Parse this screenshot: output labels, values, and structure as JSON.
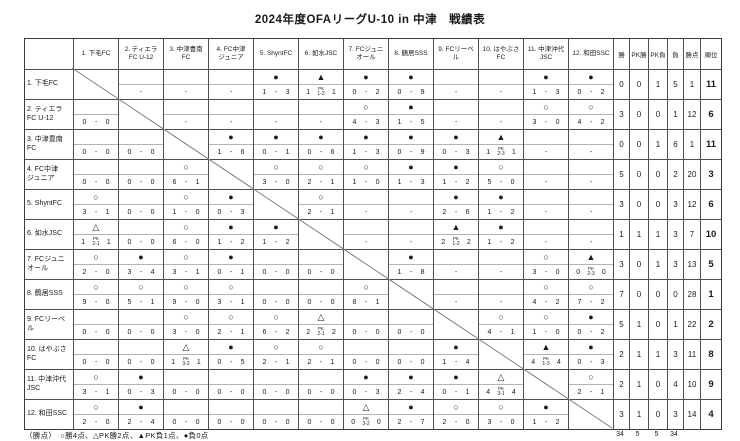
{
  "title": "2024年度OFAリーグU-10 in 中津　戦績表",
  "legend": "（勝点）　○勝4点、△PK勝2点、▲PK負1点、●負0点",
  "colors": {
    "background": "#ffffff",
    "grid_border": "#4f4f4f",
    "split_line": "#b3b3b3",
    "text": "#1a1a1a"
  },
  "stat_headers": [
    "勝",
    "PK勝",
    "PK負",
    "負",
    "勝点",
    "順位"
  ],
  "stat_totals": [
    "34",
    "5",
    "5",
    "34"
  ],
  "teams": [
    {
      "header": [
        "1. 下毛FC"
      ],
      "label": [
        "1. 下毛FC"
      ]
    },
    {
      "header": [
        "2. ティエラ",
        "FC U-12"
      ],
      "label": [
        "2. ティエラ",
        "FC U-12"
      ]
    },
    {
      "header": [
        "3. 中津豊南",
        "FC"
      ],
      "label": [
        "3. 中津豊南",
        "FC"
      ]
    },
    {
      "header": [
        "4. FC中津",
        "ジュニア"
      ],
      "label": [
        "4. FC中津",
        "ジュニア"
      ]
    },
    {
      "header": [
        "5. ShyntFC"
      ],
      "label": [
        "5. ShyntFC"
      ]
    },
    {
      "header": [
        "6. 如水JSC"
      ],
      "label": [
        "6. 如水JSC"
      ]
    },
    {
      "header": [
        "7. FCジュニ",
        "オール"
      ],
      "label": [
        "7. FCジュニ",
        "オール"
      ]
    },
    {
      "header": [
        "8. 鶴居SSS"
      ],
      "label": [
        "8. 鶴居SSS"
      ]
    },
    {
      "header": [
        "9. FCリーベ",
        "ル"
      ],
      "label": [
        "9. FCリーベ",
        "ル"
      ]
    },
    {
      "header": [
        "10. はやぶさ",
        "FC"
      ],
      "label": [
        "10. はやぶさ",
        "FC"
      ]
    },
    {
      "header": [
        "11. 中津沖代",
        "JSC"
      ],
      "label": [
        "11. 中津沖代",
        "JSC"
      ]
    },
    {
      "header": [
        "12. 和田SSC"
      ],
      "label": [
        "12. 和田SSC"
      ]
    }
  ],
  "matrix": [
    [
      "diag",
      "-",
      "-",
      "-",
      {
        "sym": "●",
        "a": "1",
        "b": "3"
      },
      {
        "sym": "▲",
        "a": "1",
        "b": "1",
        "pk": "1-2"
      },
      {
        "sym": "●",
        "a": "0",
        "b": "2"
      },
      {
        "sym": "●",
        "a": "0",
        "b": "9"
      },
      "-",
      "-",
      {
        "sym": "●",
        "a": "1",
        "b": "3"
      },
      {
        "sym": "●",
        "a": "0",
        "b": "2"
      }
    ],
    [
      {
        "sym": "",
        "a": "0",
        "b": "0"
      },
      "diag",
      "-",
      "-",
      "-",
      "-",
      {
        "sym": "○",
        "a": "4",
        "b": "3"
      },
      {
        "sym": "●",
        "a": "1",
        "b": "5"
      },
      "-",
      "-",
      {
        "sym": "○",
        "a": "3",
        "b": "0"
      },
      {
        "sym": "○",
        "a": "4",
        "b": "2"
      }
    ],
    [
      {
        "sym": "",
        "a": "0",
        "b": "0"
      },
      {
        "sym": "",
        "a": "0",
        "b": "0"
      },
      "diag",
      {
        "sym": "●",
        "a": "1",
        "b": "6"
      },
      {
        "sym": "●",
        "a": "0",
        "b": "1"
      },
      {
        "sym": "●",
        "a": "0",
        "b": "6"
      },
      {
        "sym": "●",
        "a": "1",
        "b": "3"
      },
      {
        "sym": "●",
        "a": "0",
        "b": "9"
      },
      {
        "sym": "●",
        "a": "0",
        "b": "3"
      },
      {
        "sym": "▲",
        "a": "1",
        "b": "1",
        "pk": "2-3"
      },
      "-",
      "-"
    ],
    [
      {
        "sym": "",
        "a": "0",
        "b": "0"
      },
      {
        "sym": "",
        "a": "0",
        "b": "0"
      },
      {
        "sym": "○",
        "a": "6",
        "b": "1"
      },
      "diag",
      {
        "sym": "○",
        "a": "3",
        "b": "0"
      },
      {
        "sym": "○",
        "a": "2",
        "b": "1"
      },
      {
        "sym": "○",
        "a": "1",
        "b": "0"
      },
      {
        "sym": "●",
        "a": "1",
        "b": "3"
      },
      {
        "sym": "●",
        "a": "1",
        "b": "2"
      },
      {
        "sym": "○",
        "a": "5",
        "b": "0"
      },
      "-",
      "-"
    ],
    [
      {
        "sym": "○",
        "a": "3",
        "b": "1"
      },
      {
        "sym": "",
        "a": "0",
        "b": "0"
      },
      {
        "sym": "○",
        "a": "1",
        "b": "0"
      },
      {
        "sym": "●",
        "a": "0",
        "b": "3"
      },
      "diag",
      {
        "sym": "○",
        "a": "2",
        "b": "1"
      },
      "-",
      "-",
      {
        "sym": "●",
        "a": "2",
        "b": "6"
      },
      {
        "sym": "●",
        "a": "1",
        "b": "2"
      },
      "-",
      "-"
    ],
    [
      {
        "sym": "△",
        "a": "1",
        "b": "1",
        "pk": "2-1"
      },
      {
        "sym": "",
        "a": "0",
        "b": "0"
      },
      {
        "sym": "○",
        "a": "6",
        "b": "0"
      },
      {
        "sym": "●",
        "a": "1",
        "b": "2"
      },
      {
        "sym": "●",
        "a": "1",
        "b": "2"
      },
      "diag",
      "-",
      "-",
      {
        "sym": "▲",
        "a": "2",
        "b": "2",
        "pk": "1-2"
      },
      {
        "sym": "●",
        "a": "1",
        "b": "2"
      },
      "-",
      "-"
    ],
    [
      {
        "sym": "○",
        "a": "2",
        "b": "0"
      },
      {
        "sym": "●",
        "a": "3",
        "b": "4"
      },
      {
        "sym": "○",
        "a": "3",
        "b": "1"
      },
      {
        "sym": "●",
        "a": "0",
        "b": "1"
      },
      {
        "sym": "",
        "a": "0",
        "b": "0"
      },
      {
        "sym": "",
        "a": "0",
        "b": "0"
      },
      "diag",
      {
        "sym": "●",
        "a": "1",
        "b": "8"
      },
      "-",
      "-",
      {
        "sym": "○",
        "a": "3",
        "b": "0"
      },
      {
        "sym": "▲",
        "a": "0",
        "b": "0",
        "pk": "2-3"
      }
    ],
    [
      {
        "sym": "○",
        "a": "9",
        "b": "0"
      },
      {
        "sym": "○",
        "a": "5",
        "b": "1"
      },
      {
        "sym": "○",
        "a": "9",
        "b": "0"
      },
      {
        "sym": "○",
        "a": "3",
        "b": "1"
      },
      {
        "sym": "",
        "a": "0",
        "b": "0"
      },
      {
        "sym": "",
        "a": "0",
        "b": "0"
      },
      {
        "sym": "○",
        "a": "8",
        "b": "1"
      },
      "diag",
      "-",
      "-",
      {
        "sym": "○",
        "a": "4",
        "b": "2"
      },
      {
        "sym": "○",
        "a": "7",
        "b": "2"
      }
    ],
    [
      {
        "sym": "",
        "a": "0",
        "b": "0"
      },
      {
        "sym": "",
        "a": "0",
        "b": "0"
      },
      {
        "sym": "○",
        "a": "3",
        "b": "0"
      },
      {
        "sym": "○",
        "a": "2",
        "b": "1"
      },
      {
        "sym": "○",
        "a": "6",
        "b": "2"
      },
      {
        "sym": "△",
        "a": "2",
        "b": "2",
        "pk": "2-1"
      },
      {
        "sym": "",
        "a": "0",
        "b": "0"
      },
      {
        "sym": "",
        "a": "0",
        "b": "0"
      },
      "diag",
      {
        "sym": "○",
        "a": "4",
        "b": "1"
      },
      {
        "sym": "○",
        "a": "1",
        "b": "0"
      },
      {
        "sym": "●",
        "a": "0",
        "b": "2"
      }
    ],
    [
      {
        "sym": "",
        "a": "0",
        "b": "0"
      },
      {
        "sym": "",
        "a": "0",
        "b": "0"
      },
      {
        "sym": "△",
        "a": "1",
        "b": "1",
        "pk": "3-2"
      },
      {
        "sym": "●",
        "a": "0",
        "b": "5"
      },
      {
        "sym": "○",
        "a": "2",
        "b": "1"
      },
      {
        "sym": "○",
        "a": "2",
        "b": "1"
      },
      {
        "sym": "",
        "a": "0",
        "b": "0"
      },
      {
        "sym": "",
        "a": "0",
        "b": "0"
      },
      {
        "sym": "●",
        "a": "1",
        "b": "4"
      },
      "diag",
      {
        "sym": "▲",
        "a": "4",
        "b": "4",
        "pk": "1-3"
      },
      {
        "sym": "●",
        "a": "0",
        "b": "3"
      }
    ],
    [
      {
        "sym": "○",
        "a": "3",
        "b": "1"
      },
      {
        "sym": "●",
        "a": "0",
        "b": "3"
      },
      {
        "sym": "",
        "a": "0",
        "b": "0"
      },
      {
        "sym": "",
        "a": "0",
        "b": "0"
      },
      {
        "sym": "",
        "a": "0",
        "b": "0"
      },
      {
        "sym": "",
        "a": "0",
        "b": "0"
      },
      {
        "sym": "●",
        "a": "0",
        "b": "3"
      },
      {
        "sym": "●",
        "a": "2",
        "b": "4"
      },
      {
        "sym": "●",
        "a": "0",
        "b": "1"
      },
      {
        "sym": "△",
        "a": "4",
        "b": "4",
        "pk": "3-1"
      },
      "diag",
      {
        "sym": "○",
        "a": "2",
        "b": "1"
      }
    ],
    [
      {
        "sym": "○",
        "a": "2",
        "b": "0"
      },
      {
        "sym": "●",
        "a": "2",
        "b": "4"
      },
      {
        "sym": "",
        "a": "0",
        "b": "0"
      },
      {
        "sym": "",
        "a": "0",
        "b": "0"
      },
      {
        "sym": "",
        "a": "0",
        "b": "0"
      },
      {
        "sym": "",
        "a": "0",
        "b": "0"
      },
      {
        "sym": "△",
        "a": "0",
        "b": "0",
        "pk": "3-2"
      },
      {
        "sym": "●",
        "a": "2",
        "b": "7"
      },
      {
        "sym": "○",
        "a": "2",
        "b": "0"
      },
      {
        "sym": "○",
        "a": "3",
        "b": "0"
      },
      {
        "sym": "●",
        "a": "1",
        "b": "2"
      },
      "diag"
    ]
  ],
  "stats": [
    [
      "0",
      "0",
      "1",
      "5",
      "1",
      "11"
    ],
    [
      "3",
      "0",
      "0",
      "1",
      "12",
      "6"
    ],
    [
      "0",
      "0",
      "1",
      "6",
      "1",
      "11"
    ],
    [
      "5",
      "0",
      "0",
      "2",
      "20",
      "3"
    ],
    [
      "3",
      "0",
      "0",
      "3",
      "12",
      "6"
    ],
    [
      "1",
      "1",
      "1",
      "3",
      "7",
      "10"
    ],
    [
      "3",
      "0",
      "1",
      "3",
      "13",
      "5"
    ],
    [
      "7",
      "0",
      "0",
      "0",
      "28",
      "1"
    ],
    [
      "5",
      "1",
      "0",
      "1",
      "22",
      "2"
    ],
    [
      "2",
      "1",
      "1",
      "3",
      "11",
      "8"
    ],
    [
      "2",
      "1",
      "0",
      "4",
      "10",
      "9"
    ],
    [
      "3",
      "1",
      "0",
      "3",
      "14",
      "4"
    ]
  ]
}
